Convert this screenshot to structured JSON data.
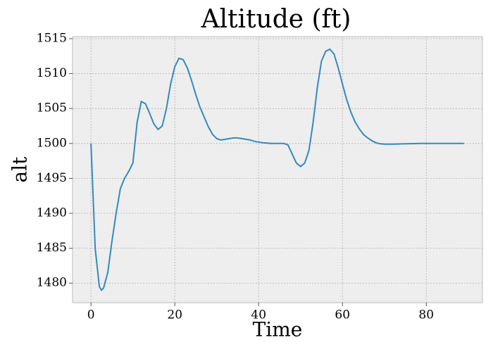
{
  "chart_data": {
    "type": "line",
    "title": "Altitude (ft)",
    "x_label": "Time",
    "y_label": "alt",
    "x": [
      0,
      1,
      2,
      2.5,
      3,
      4,
      5,
      6,
      7,
      8,
      9,
      10,
      11,
      12,
      13,
      14,
      15,
      16,
      17,
      18,
      19,
      20,
      21,
      22,
      23,
      24,
      25,
      26,
      27,
      28,
      29,
      30,
      31,
      32,
      33,
      34,
      35,
      36,
      37,
      38,
      39,
      40,
      41,
      42,
      43,
      44,
      45,
      46,
      47,
      48,
      49,
      50,
      51,
      52,
      53,
      54,
      55,
      56,
      57,
      58,
      59,
      60,
      61,
      62,
      63,
      64,
      65,
      66,
      67,
      68,
      69,
      70,
      71,
      72,
      73,
      74,
      75,
      76,
      77,
      78,
      79,
      80,
      81,
      82,
      83,
      84,
      85,
      86,
      87,
      88,
      89
    ],
    "series": [
      {
        "name": "alt",
        "color": "#348ABD",
        "values": [
          1500,
          1485,
          1479.5,
          1479.0,
          1479.3,
          1481.5,
          1486,
          1490,
          1493.5,
          1495,
          1496,
          1497.2,
          1503,
          1506,
          1505.7,
          1504.3,
          1502.8,
          1502,
          1502.5,
          1505,
          1508.5,
          1511,
          1512.2,
          1512,
          1510.8,
          1509,
          1507,
          1505.2,
          1503.8,
          1502.4,
          1501.3,
          1500.7,
          1500.5,
          1500.6,
          1500.7,
          1500.8,
          1500.8,
          1500.7,
          1500.6,
          1500.5,
          1500.3,
          1500.2,
          1500.1,
          1500.05,
          1500,
          1500,
          1500,
          1500,
          1499.8,
          1498.5,
          1497.2,
          1496.7,
          1497.2,
          1499,
          1503,
          1508,
          1511.8,
          1513.2,
          1513.5,
          1512.8,
          1510.8,
          1508.5,
          1506.3,
          1504.5,
          1503.1,
          1502.1,
          1501.3,
          1500.8,
          1500.4,
          1500.1,
          1499.95,
          1499.9,
          1499.9,
          1499.9,
          1499.92,
          1499.94,
          1499.96,
          1499.97,
          1499.98,
          1499.99,
          1500,
          1500,
          1500,
          1500,
          1500,
          1500,
          1500,
          1500,
          1500,
          1500,
          1500
        ]
      }
    ],
    "xlim": [
      -4.4,
      93.4
    ],
    "ylim": [
      1477.2,
      1515.3
    ],
    "xticks": [
      0,
      20,
      40,
      60,
      80
    ],
    "yticks": [
      1480,
      1485,
      1490,
      1495,
      1500,
      1505,
      1510,
      1515
    ],
    "grid": true
  }
}
